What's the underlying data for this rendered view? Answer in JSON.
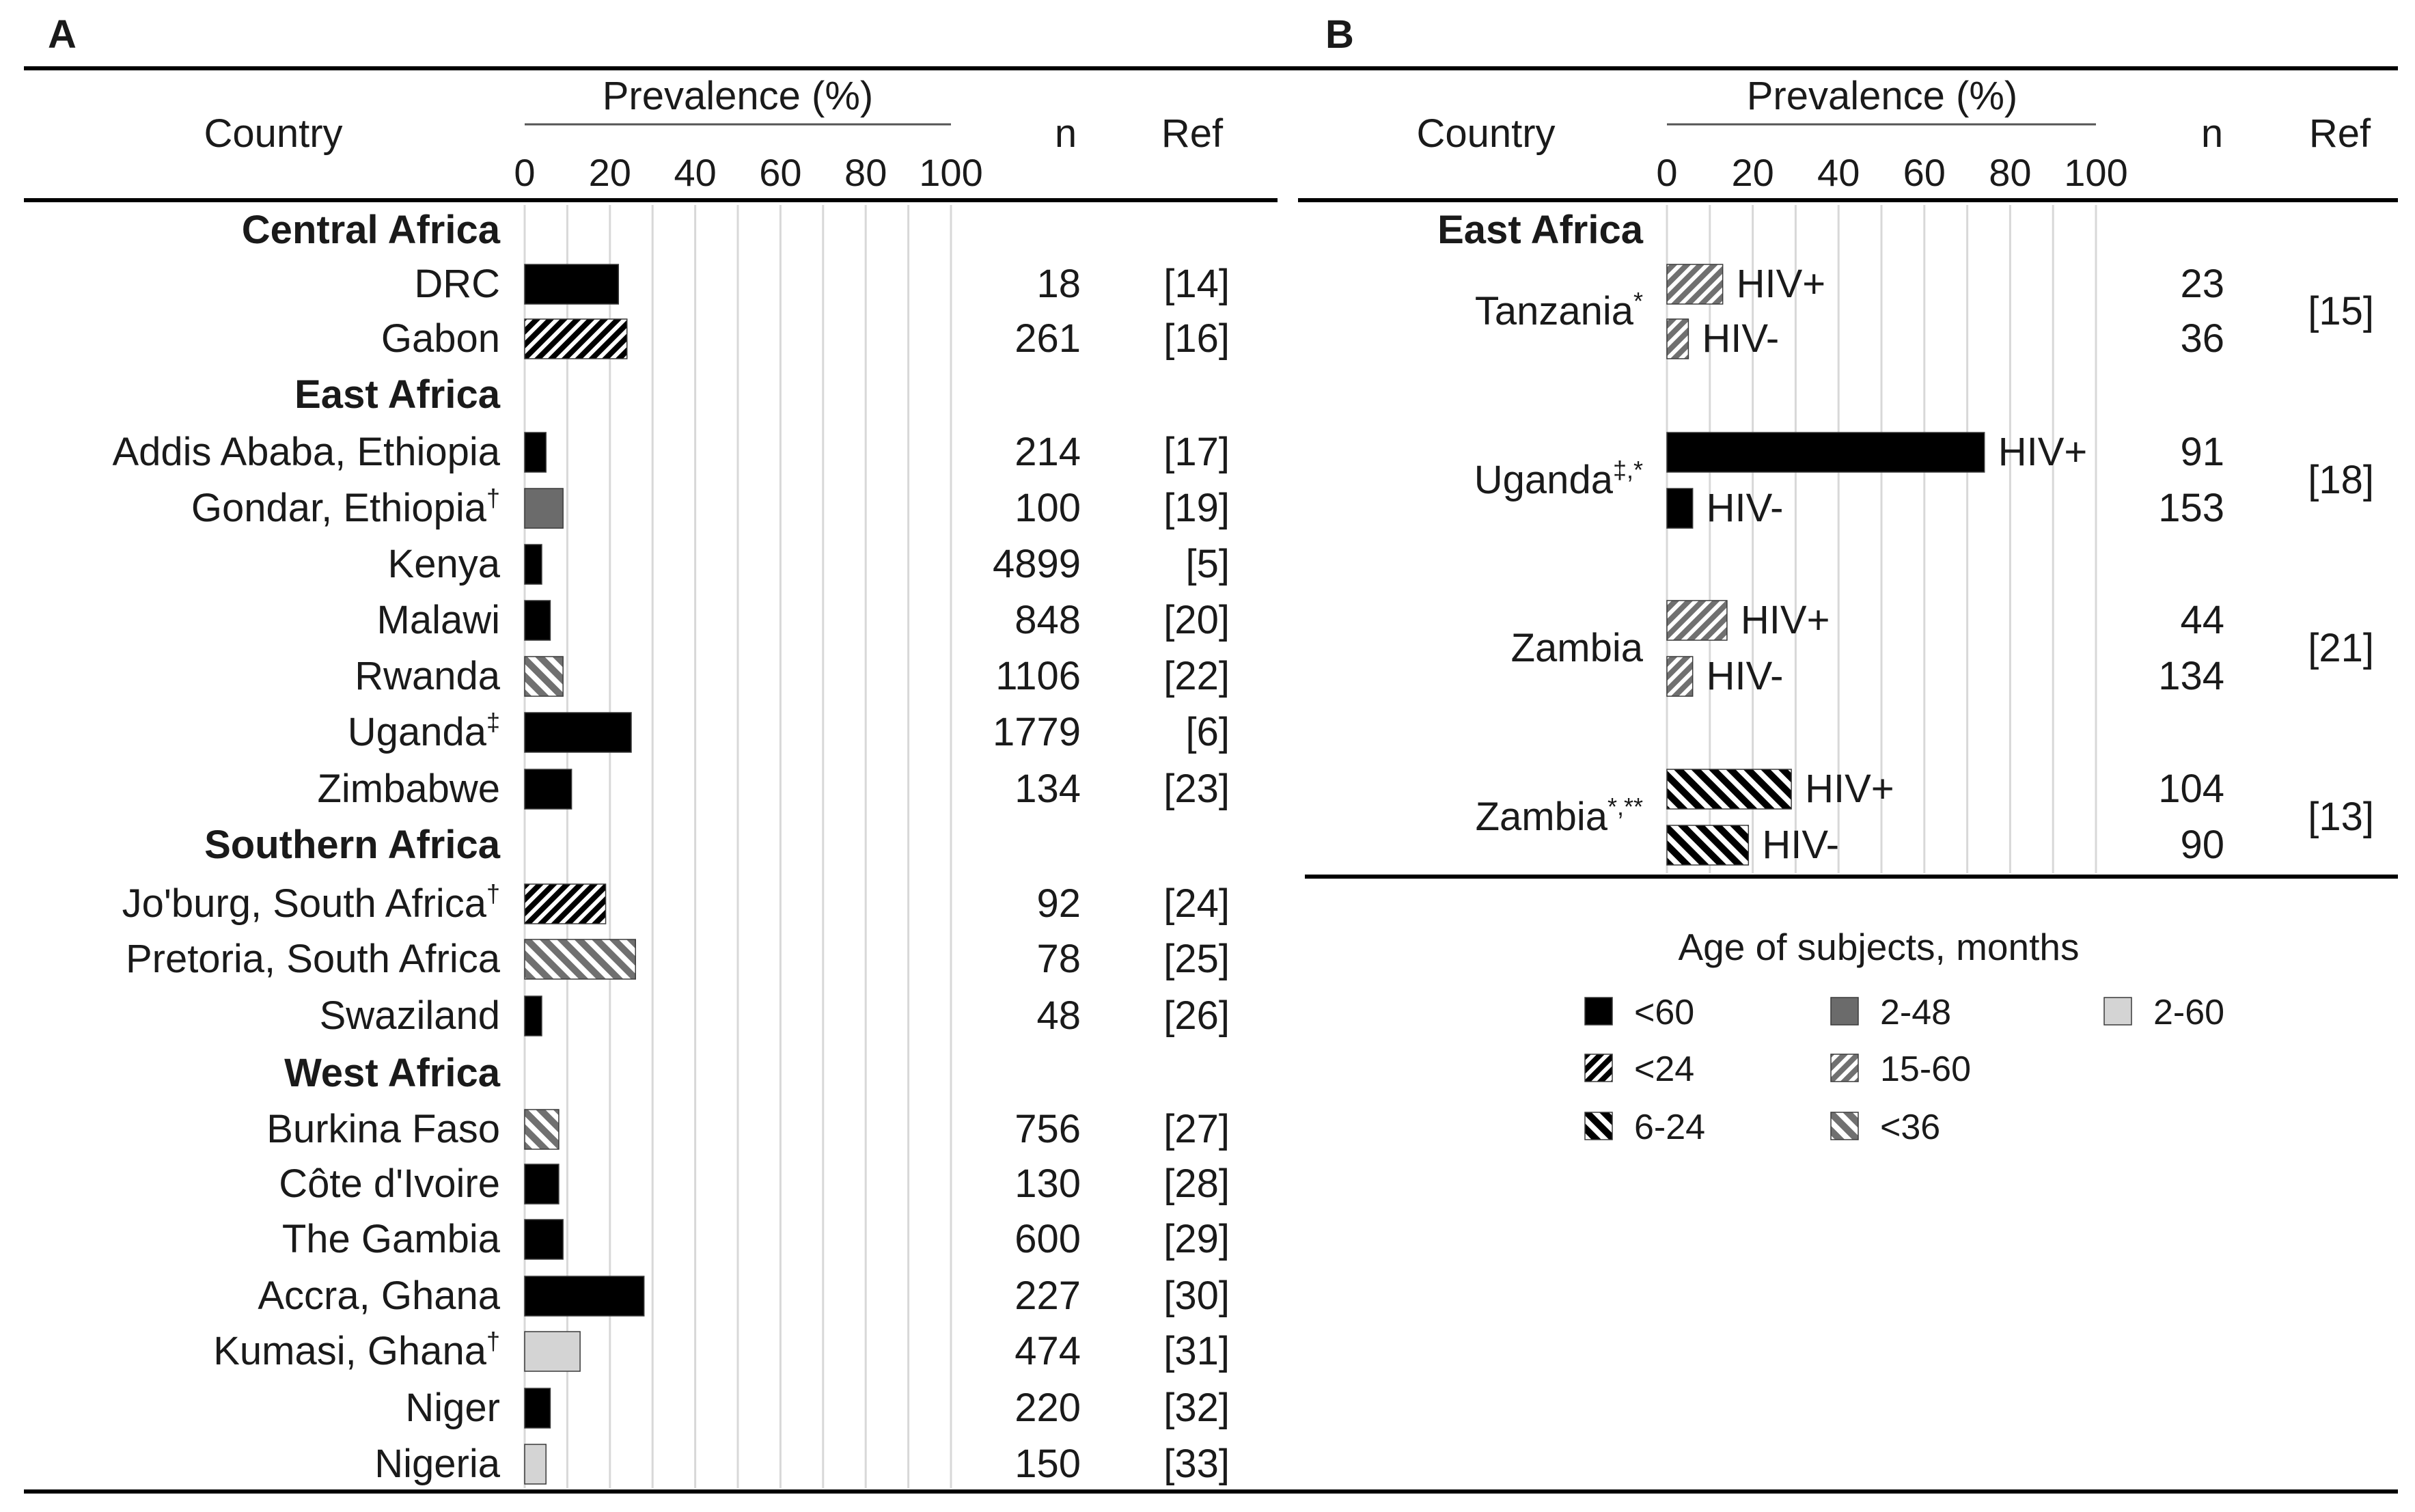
{
  "panel_a": {
    "letter": "A"
  },
  "panel_b": {
    "letter": "B"
  },
  "headers": {
    "country": "Country",
    "prevalence": "Prevalence (%)",
    "n": "n",
    "ref": "Ref",
    "ticks": [
      "0",
      "20",
      "40",
      "60",
      "80",
      "100"
    ]
  },
  "legend": {
    "title": "Age of subjects, months",
    "items": [
      {
        "label": "<60",
        "pattern": "solid_black"
      },
      {
        "label": "2-48",
        "pattern": "solid_gray"
      },
      {
        "label": "2-60",
        "pattern": "solid_light"
      },
      {
        "label": "<24",
        "pattern": "hatch_black_dense"
      },
      {
        "label": "15-60",
        "pattern": "hatch_gray_dense"
      },
      {
        "label": "6-24",
        "pattern": "hatch_black_fwd"
      },
      {
        "label": "<36",
        "pattern": "hatch_gray_fwd"
      }
    ]
  },
  "colors": {
    "black": "#000000",
    "gray": "#6b6b6b",
    "light": "#d4d4d4",
    "grid": "#d8d8d8",
    "text": "#1a1a1a"
  },
  "chart_data": [
    {
      "panel": "A",
      "type": "bar",
      "orientation": "horizontal",
      "xlabel": "Prevalence (%)",
      "xlim": [
        0,
        100
      ],
      "rows": [
        {
          "kind": "region",
          "label": "Central Africa"
        },
        {
          "kind": "bar",
          "country": "DRC",
          "sup": "",
          "value": 22,
          "n": "18",
          "ref": "[14]",
          "pattern": "solid_black"
        },
        {
          "kind": "bar",
          "country": "Gabon",
          "sup": "",
          "value": 24,
          "n": "261",
          "ref": "[16]",
          "pattern": "hatch_black_dense"
        },
        {
          "kind": "region",
          "label": "East Africa"
        },
        {
          "kind": "bar",
          "country": "Addis Ababa, Ethiopia",
          "sup": "",
          "value": 5,
          "n": "214",
          "ref": "[17]",
          "pattern": "solid_black"
        },
        {
          "kind": "bar",
          "country": "Gondar, Ethiopia",
          "sup": "†",
          "value": 9,
          "n": "100",
          "ref": "[19]",
          "pattern": "solid_gray"
        },
        {
          "kind": "bar",
          "country": "Kenya",
          "sup": "",
          "value": 4,
          "n": "4899",
          "ref": "[5]",
          "pattern": "solid_black"
        },
        {
          "kind": "bar",
          "country": "Malawi",
          "sup": "",
          "value": 6,
          "n": "848",
          "ref": "[20]",
          "pattern": "solid_black"
        },
        {
          "kind": "bar",
          "country": "Rwanda",
          "sup": "",
          "value": 9,
          "n": "1106",
          "ref": "[22]",
          "pattern": "hatch_gray_fwd"
        },
        {
          "kind": "bar",
          "country": "Uganda",
          "sup": "‡",
          "value": 25,
          "n": "1779",
          "ref": "[6]",
          "pattern": "solid_black"
        },
        {
          "kind": "bar",
          "country": "Zimbabwe",
          "sup": "",
          "value": 11,
          "n": "134",
          "ref": "[23]",
          "pattern": "solid_black"
        },
        {
          "kind": "region",
          "label": "Southern Africa"
        },
        {
          "kind": "bar",
          "country": "Jo'burg, South Africa",
          "sup": "†",
          "value": 19,
          "n": "92",
          "ref": "[24]",
          "pattern": "hatch_black_dense"
        },
        {
          "kind": "bar",
          "country": "Pretoria, South Africa",
          "sup": "",
          "value": 26,
          "n": "78",
          "ref": "[25]",
          "pattern": "hatch_gray_fwd"
        },
        {
          "kind": "bar",
          "country": "Swaziland",
          "sup": "",
          "value": 4,
          "n": "48",
          "ref": "[26]",
          "pattern": "solid_black"
        },
        {
          "kind": "region",
          "label": "West Africa"
        },
        {
          "kind": "bar",
          "country": "Burkina Faso",
          "sup": "",
          "value": 8,
          "n": "756",
          "ref": "[27]",
          "pattern": "hatch_gray_fwd"
        },
        {
          "kind": "bar",
          "country": "Côte d'Ivoire",
          "sup": "",
          "value": 8,
          "n": "130",
          "ref": "[28]",
          "pattern": "solid_black"
        },
        {
          "kind": "bar",
          "country": "The Gambia",
          "sup": "",
          "value": 9,
          "n": "600",
          "ref": "[29]",
          "pattern": "solid_black"
        },
        {
          "kind": "bar",
          "country": "Accra, Ghana",
          "sup": "",
          "value": 28,
          "n": "227",
          "ref": "[30]",
          "pattern": "solid_black"
        },
        {
          "kind": "bar",
          "country": "Kumasi, Ghana",
          "sup": "†",
          "value": 13,
          "n": "474",
          "ref": "[31]",
          "pattern": "solid_light"
        },
        {
          "kind": "bar",
          "country": "Niger",
          "sup": "",
          "value": 6,
          "n": "220",
          "ref": "[32]",
          "pattern": "solid_black"
        },
        {
          "kind": "bar",
          "country": "Nigeria",
          "sup": "",
          "value": 5,
          "n": "150",
          "ref": "[33]",
          "pattern": "solid_light"
        }
      ]
    },
    {
      "panel": "B",
      "type": "bar",
      "orientation": "horizontal",
      "xlabel": "Prevalence (%)",
      "xlim": [
        0,
        100
      ],
      "region": "East Africa",
      "groups": [
        {
          "country": "Tanzania",
          "sup": "*",
          "ref": "[15]",
          "pattern": "hatch_gray_dense",
          "bars": [
            {
              "label": "HIV+",
              "value": 13,
              "n": "23"
            },
            {
              "label": "HIV-",
              "value": 5,
              "n": "36"
            }
          ]
        },
        {
          "country": "Uganda",
          "sup": "‡,*",
          "ref": "[18]",
          "pattern": "solid_black",
          "bars": [
            {
              "label": "HIV+",
              "value": 74,
              "n": "91"
            },
            {
              "label": "HIV-",
              "value": 6,
              "n": "153"
            }
          ]
        },
        {
          "country": "Zambia",
          "sup": "",
          "ref": "[21]",
          "pattern": "hatch_gray_dense",
          "bars": [
            {
              "label": "HIV+",
              "value": 14,
              "n": "44"
            },
            {
              "label": "HIV-",
              "value": 6,
              "n": "134"
            }
          ]
        },
        {
          "country": "Zambia",
          "sup": "*,**",
          "ref": "[13]",
          "pattern": "hatch_black_fwd",
          "bars": [
            {
              "label": "HIV+",
              "value": 29,
              "n": "104"
            },
            {
              "label": "HIV-",
              "value": 19,
              "n": "90"
            }
          ]
        }
      ]
    }
  ]
}
